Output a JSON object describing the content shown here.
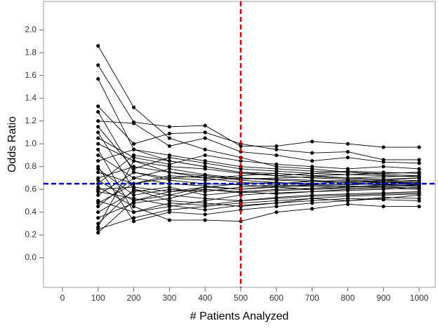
{
  "chart_data": {
    "type": "line",
    "x_label": "# Patients Analyzed",
    "y_label": "Odds Ratio",
    "xlim": [
      -53,
      1045
    ],
    "ylim": [
      -0.26,
      2.25
    ],
    "xticks": [
      0,
      100,
      200,
      300,
      400,
      500,
      600,
      700,
      800,
      900,
      1000
    ],
    "yticks": [
      {
        "value": 0,
        "label": "0.0"
      },
      0.2,
      0.4,
      0.6,
      0.8,
      {
        "value": 1,
        "label": "1.0"
      },
      1.2,
      1.4,
      1.6,
      1.8,
      {
        "value": 2,
        "label": "2.0"
      }
    ],
    "color": "#000000",
    "reference_lines": [
      {
        "axis": "y",
        "value": 0.65,
        "color": "#0000cc"
      },
      {
        "axis": "x",
        "value": 500,
        "color": "#e00000"
      }
    ],
    "x": [
      100,
      200,
      300,
      400,
      500,
      600,
      700,
      800,
      900,
      1000
    ],
    "series": [
      {
        "values": [
          1.86,
          1.32,
          1.05,
          0.95,
          0.88,
          0.8,
          0.78,
          0.75,
          0.73,
          0.72
        ]
      },
      {
        "values": [
          1.69,
          1.19,
          1.15,
          1.16,
          0.98,
          0.98,
          1.02,
          1.0,
          0.97,
          0.97
        ]
      },
      {
        "values": [
          1.57,
          0.95,
          0.85,
          0.8,
          0.75,
          0.72,
          0.7,
          0.69,
          0.68,
          0.7
        ]
      },
      {
        "values": [
          1.33,
          1.0,
          1.09,
          1.1,
          1.0,
          0.95,
          0.92,
          0.93,
          0.86,
          0.86
        ]
      },
      {
        "values": [
          1.28,
          0.75,
          0.7,
          0.72,
          0.68,
          0.66,
          0.65,
          0.67,
          0.66,
          0.65
        ]
      },
      {
        "values": [
          1.2,
          1.18,
          0.98,
          1.05,
          0.93,
          0.9,
          0.85,
          0.88,
          0.84,
          0.83
        ]
      },
      {
        "values": [
          1.1,
          0.6,
          0.55,
          0.62,
          0.6,
          0.62,
          0.6,
          0.62,
          0.63,
          0.64
        ]
      },
      {
        "values": [
          1.0,
          0.85,
          0.8,
          0.78,
          0.74,
          0.72,
          0.74,
          0.73,
          0.72,
          0.71
        ]
      },
      {
        "values": [
          0.95,
          0.4,
          0.45,
          0.5,
          0.55,
          0.57,
          0.58,
          0.6,
          0.61,
          0.6
        ]
      },
      {
        "values": [
          0.9,
          0.7,
          0.65,
          0.63,
          0.6,
          0.63,
          0.64,
          0.65,
          0.66,
          0.66
        ]
      },
      {
        "values": [
          0.85,
          0.95,
          0.9,
          0.85,
          0.8,
          0.78,
          0.76,
          0.75,
          0.74,
          0.75
        ]
      },
      {
        "values": [
          0.8,
          0.32,
          0.4,
          0.38,
          0.42,
          0.45,
          0.48,
          0.5,
          0.52,
          0.55
        ]
      },
      {
        "values": [
          0.78,
          0.55,
          0.6,
          0.58,
          0.62,
          0.64,
          0.63,
          0.62,
          0.64,
          0.63
        ]
      },
      {
        "values": [
          0.75,
          0.65,
          0.7,
          0.68,
          0.7,
          0.68,
          0.67,
          0.68,
          0.67,
          0.68
        ]
      },
      {
        "values": [
          0.7,
          0.8,
          0.75,
          0.72,
          0.69,
          0.7,
          0.71,
          0.7,
          0.69,
          0.7
        ]
      },
      {
        "values": [
          0.68,
          0.5,
          0.55,
          0.52,
          0.5,
          0.53,
          0.55,
          0.56,
          0.57,
          0.58
        ]
      },
      {
        "values": [
          0.65,
          0.9,
          0.85,
          0.8,
          0.75,
          0.74,
          0.72,
          0.7,
          0.71,
          0.72
        ]
      },
      {
        "values": [
          0.62,
          0.45,
          0.33,
          0.33,
          0.32,
          0.4,
          0.43,
          0.47,
          0.45,
          0.45
        ]
      },
      {
        "values": [
          0.6,
          0.62,
          0.58,
          0.6,
          0.57,
          0.59,
          0.6,
          0.61,
          0.62,
          0.61
        ]
      },
      {
        "values": [
          0.55,
          0.75,
          0.68,
          0.65,
          0.64,
          0.62,
          0.63,
          0.64,
          0.65,
          0.64
        ]
      },
      {
        "values": [
          0.5,
          0.4,
          0.48,
          0.46,
          0.5,
          0.52,
          0.54,
          0.55,
          0.56,
          0.57
        ]
      },
      {
        "values": [
          0.45,
          0.7,
          0.78,
          0.73,
          0.7,
          0.69,
          0.68,
          0.66,
          0.67,
          0.66
        ]
      },
      {
        "values": [
          0.4,
          0.58,
          0.62,
          0.55,
          0.58,
          0.56,
          0.58,
          0.59,
          0.6,
          0.62
        ]
      },
      {
        "values": [
          0.35,
          0.48,
          0.52,
          0.6,
          0.58,
          0.6,
          0.61,
          0.63,
          0.62,
          0.63
        ]
      },
      {
        "values": [
          0.3,
          0.6,
          0.5,
          0.48,
          0.45,
          0.48,
          0.5,
          0.52,
          0.51,
          0.5
        ]
      },
      {
        "values": [
          0.25,
          0.35,
          0.42,
          0.45,
          0.48,
          0.5,
          0.52,
          0.54,
          0.55,
          0.56
        ]
      },
      {
        "values": [
          0.22,
          0.5,
          0.58,
          0.62,
          0.65,
          0.66,
          0.64,
          0.65,
          0.64,
          0.65
        ]
      },
      {
        "values": [
          0.27,
          0.85,
          0.75,
          0.7,
          0.72,
          0.74,
          0.72,
          0.73,
          0.74,
          0.75
        ]
      },
      {
        "values": [
          1.05,
          0.88,
          0.82,
          0.9,
          0.85,
          0.82,
          0.8,
          0.78,
          0.8,
          0.78
        ]
      },
      {
        "values": [
          0.48,
          0.65,
          0.72,
          0.7,
          0.66,
          0.65,
          0.67,
          0.66,
          0.68,
          0.67
        ]
      },
      {
        "values": [
          1.15,
          0.78,
          0.88,
          0.83,
          0.78,
          0.76,
          0.74,
          0.76,
          0.75,
          0.74
        ]
      },
      {
        "values": [
          0.58,
          0.52,
          0.46,
          0.42,
          0.46,
          0.48,
          0.52,
          0.5,
          0.53,
          0.52
        ]
      }
    ]
  }
}
